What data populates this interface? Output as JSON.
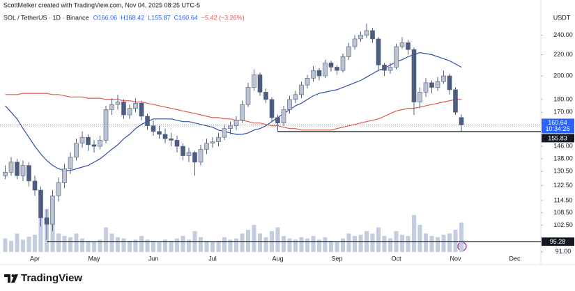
{
  "chart_data": {
    "type": "candlestick",
    "title": "ScottMelker created with TradingView.com, Nov 04, 2025 08:25 UTC-5",
    "symbol": "SOL / TetherUS · 1D · Binance",
    "ohlc_labels": [
      "O166.06",
      "H168.42",
      "L155.87",
      "C160.64",
      "−5.42 (−3.26%)"
    ],
    "currency": "USDT",
    "brand": "TradingView",
    "log_scale": true,
    "grid": false,
    "up_color": "#bcc3d1",
    "down_color": "#4d5d80",
    "categories": [
      null,
      null,
      null,
      null,
      null,
      "Apr",
      null,
      null,
      null,
      null,
      null,
      null,
      null,
      null,
      null,
      "May",
      null,
      null,
      null,
      null,
      null,
      null,
      null,
      null,
      null,
      "Jun",
      null,
      null,
      null,
      null,
      null,
      null,
      null,
      null,
      null,
      "Jul",
      null,
      null,
      null,
      null,
      null,
      null,
      null,
      null,
      null,
      null,
      "Aug",
      null,
      null,
      null,
      null,
      null,
      null,
      null,
      null,
      null,
      "Sep",
      null,
      null,
      null,
      null,
      null,
      null,
      null,
      null,
      null,
      "Oct",
      null,
      null,
      null,
      null,
      null,
      null,
      null,
      null,
      null,
      "Nov",
      null,
      null,
      null,
      null,
      null,
      null,
      null,
      null,
      null,
      "Dec"
    ],
    "open": [
      128,
      130,
      136,
      128,
      134,
      125,
      120,
      106,
      103,
      117,
      124,
      132,
      139,
      148,
      152,
      147,
      146,
      150,
      172,
      176,
      178,
      168,
      173,
      177,
      167,
      160,
      156,
      154,
      151,
      150,
      146,
      140,
      142,
      136,
      144,
      148,
      149,
      152,
      158,
      160,
      164,
      176,
      190,
      201,
      186,
      180,
      166,
      162,
      172,
      180,
      184,
      192,
      198,
      205,
      200,
      212,
      208,
      205,
      218,
      228,
      236,
      240,
      245,
      236,
      210,
      205,
      208,
      228,
      232,
      225,
      178,
      186,
      194,
      190,
      195,
      200,
      188,
      166.06,
      null,
      null,
      null,
      null,
      null,
      null,
      null,
      null,
      null
    ],
    "high": [
      134,
      139,
      138,
      137,
      136,
      128,
      122,
      110,
      120,
      127,
      135,
      142,
      151,
      156,
      154,
      150,
      153,
      175,
      181,
      184,
      180,
      176,
      181,
      179,
      169,
      164,
      160,
      158,
      155,
      153,
      148,
      145,
      143,
      147,
      151,
      152,
      155,
      161,
      163,
      167,
      179,
      194,
      206,
      203,
      189,
      182,
      168,
      175,
      183,
      187,
      195,
      201,
      209,
      207,
      215,
      214,
      210,
      221,
      232,
      240,
      244,
      253,
      248,
      238,
      212,
      212,
      231,
      238,
      235,
      227,
      190,
      198,
      196,
      199,
      205,
      202,
      190,
      168.42,
      null,
      null,
      null,
      null,
      null,
      null,
      null,
      null,
      null
    ],
    "low": [
      126,
      128,
      126,
      125,
      122,
      117,
      102,
      96,
      100,
      114,
      121,
      129,
      137,
      145,
      143,
      142,
      144,
      148,
      168,
      172,
      165,
      165,
      170,
      164,
      157,
      153,
      151,
      148,
      146,
      142,
      137,
      136,
      128,
      134,
      141,
      145,
      146,
      150,
      154,
      157,
      162,
      174,
      187,
      183,
      177,
      163,
      155.83,
      160,
      169,
      177,
      181,
      189,
      195,
      196,
      198,
      204,
      201,
      203,
      215,
      225,
      233,
      237,
      232,
      205,
      200,
      202,
      206,
      226,
      220,
      168,
      173,
      182,
      185,
      187,
      193,
      184,
      168,
      155.87,
      null,
      null,
      null,
      null,
      null,
      null,
      null,
      null,
      null
    ],
    "close": [
      130,
      136,
      128,
      134,
      125,
      120,
      106,
      103,
      117,
      124,
      132,
      139,
      148,
      152,
      147,
      146,
      150,
      172,
      176,
      178,
      168,
      173,
      177,
      167,
      160,
      156,
      154,
      151,
      150,
      146,
      140,
      142,
      136,
      144,
      148,
      149,
      152,
      158,
      160,
      164,
      176,
      190,
      201,
      186,
      180,
      166,
      162,
      172,
      180,
      184,
      192,
      198,
      205,
      200,
      212,
      208,
      205,
      218,
      228,
      236,
      240,
      245,
      236,
      210,
      205,
      208,
      228,
      232,
      225,
      178,
      186,
      194,
      190,
      195,
      200,
      188,
      170,
      160.64,
      null,
      null,
      null,
      null,
      null,
      null,
      null,
      null,
      null
    ],
    "lines": [
      {
        "color": "#2f4fa8",
        "values": [
          175,
          170,
          165,
          158,
          152,
          146,
          141,
          137,
          134,
          132,
          131,
          131,
          132,
          133,
          134,
          136,
          138,
          141,
          144,
          147,
          151,
          154,
          158,
          161,
          163,
          165,
          165,
          165,
          165,
          164,
          163,
          163,
          162,
          161,
          160,
          159,
          157,
          156,
          155,
          154,
          154,
          155,
          157,
          158,
          160,
          163,
          166,
          169,
          172,
          175,
          177,
          180,
          183,
          185,
          186,
          187,
          188,
          190,
          192,
          194,
          196,
          199,
          202,
          205,
          207,
          210,
          213,
          215,
          218,
          220,
          222,
          221,
          220,
          218,
          216,
          214,
          211,
          208,
          null,
          null,
          null,
          null,
          null,
          null,
          null,
          null,
          null
        ]
      },
      {
        "color": "#e0584c",
        "values": [
          184,
          184,
          184,
          185,
          185,
          185,
          185,
          185,
          184,
          184,
          183,
          182,
          182,
          182,
          181,
          181,
          181,
          180,
          180,
          180,
          179,
          179,
          178,
          178,
          177,
          176,
          175,
          174,
          173,
          172,
          171,
          170,
          169,
          168,
          167,
          166,
          166,
          165,
          165,
          164,
          164,
          163,
          162,
          162,
          161,
          160,
          160,
          159,
          158,
          158,
          157,
          157,
          157,
          157,
          157,
          157,
          158,
          159,
          160,
          161,
          162,
          163,
          164,
          165,
          167,
          169,
          171,
          172,
          173,
          173,
          174,
          175,
          176,
          177,
          178,
          179,
          180,
          180,
          null,
          null,
          null,
          null,
          null,
          null,
          null,
          null,
          null
        ]
      }
    ],
    "volume": {
      "color": "#c4cde0",
      "values": [
        22,
        18,
        30,
        20,
        25,
        28,
        55,
        70,
        48,
        30,
        26,
        24,
        30,
        22,
        18,
        16,
        20,
        40,
        30,
        24,
        22,
        18,
        20,
        26,
        20,
        18,
        16,
        20,
        18,
        22,
        26,
        20,
        34,
        24,
        18,
        16,
        18,
        24,
        20,
        22,
        30,
        36,
        44,
        30,
        24,
        34,
        40,
        26,
        22,
        20,
        24,
        22,
        26,
        20,
        24,
        18,
        16,
        22,
        30,
        26,
        28,
        34,
        30,
        40,
        26,
        22,
        34,
        28,
        26,
        60,
        44,
        30,
        26,
        24,
        28,
        30,
        36,
        48,
        null,
        null,
        null,
        null,
        null,
        null,
        null,
        null,
        null
      ]
    },
    "ylim": [
      86,
      274
    ],
    "yticks": [
      {
        "value": 91,
        "label": "91.00"
      },
      {
        "value": 102.5,
        "label": "102.50"
      },
      {
        "value": 108.5,
        "label": "108.50"
      },
      {
        "value": 114.5,
        "label": "114.50"
      },
      {
        "value": 122.5,
        "label": "122.50"
      },
      {
        "value": 130.5,
        "label": "130.50"
      },
      {
        "value": 138,
        "label": "138.00"
      },
      {
        "value": 146,
        "label": "146.00"
      },
      {
        "value": 170,
        "label": "170.00"
      },
      {
        "value": 180,
        "label": "180.00"
      },
      {
        "value": 200,
        "label": "200.00"
      },
      {
        "value": 220,
        "label": "220.00"
      },
      {
        "value": 240,
        "label": "240.00"
      }
    ],
    "levels": [
      {
        "value": 155.83,
        "start": 46
      },
      {
        "value": 95.28,
        "start": 7
      }
    ],
    "last_price": {
      "value": 160.64,
      "countdown": "10:34:26",
      "color": "#2962ff"
    }
  }
}
